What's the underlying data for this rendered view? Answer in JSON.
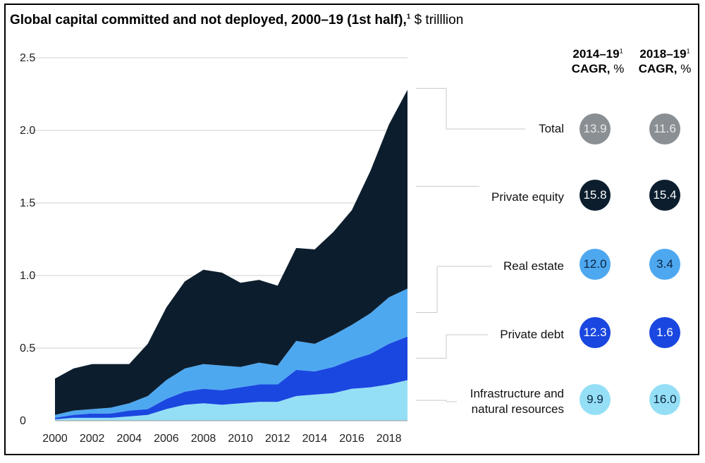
{
  "title": {
    "main": "Global capital committed and not deployed, 2000–19 (1st half),",
    "footnote": "1",
    "unit": " $ trilllion"
  },
  "colors": {
    "infrastructure": "#95dff6",
    "private_debt": "#1a47e0",
    "real_estate": "#4ea8f0",
    "private_equity": "#0c1e2e",
    "total": "#8a8f94",
    "text": "#111111"
  },
  "columns": [
    {
      "period": "2014–19",
      "footnote": "1",
      "metric": "CAGR,",
      "unit": " %"
    },
    {
      "period": "2018–19",
      "footnote": "1",
      "metric": "CAGR,",
      "unit": " %"
    }
  ],
  "rows": [
    {
      "label": "Total",
      "lines": [
        "Total"
      ],
      "key": "total",
      "cagr_2014_19": "13.9",
      "cagr_2018_19": "11.6",
      "text_color": "#e8e8e8"
    },
    {
      "label": "Private equity",
      "lines": [
        "Private equity"
      ],
      "key": "private_equity",
      "cagr_2014_19": "15.8",
      "cagr_2018_19": "15.4",
      "text_color": "#ffffff"
    },
    {
      "label": "Real estate",
      "lines": [
        "Real estate"
      ],
      "key": "real_estate",
      "cagr_2014_19": "12.0",
      "cagr_2018_19": "3.4",
      "text_color": "#0b2540"
    },
    {
      "label": "Private debt",
      "lines": [
        "Private debt"
      ],
      "key": "private_debt",
      "cagr_2014_19": "12.3",
      "cagr_2018_19": "1.6",
      "text_color": "#ffffff"
    },
    {
      "label": "Infrastructure and natural resources",
      "lines": [
        "Infrastructure and",
        "natural resources"
      ],
      "key": "infrastructure",
      "cagr_2014_19": "9.9",
      "cagr_2018_19": "16.0",
      "text_color": "#0b2540"
    }
  ],
  "chart_data": {
    "type": "area",
    "stacked": true,
    "title": "Global capital committed and not deployed, 2000–19 (1st half), $ trilllion",
    "xlabel": "",
    "ylabel": "$ trilllion",
    "x": [
      2000,
      2001,
      2002,
      2003,
      2004,
      2005,
      2006,
      2007,
      2008,
      2009,
      2010,
      2011,
      2012,
      2013,
      2014,
      2015,
      2016,
      2017,
      2018,
      2019
    ],
    "x_ticks": [
      "2000",
      "2002",
      "2004",
      "2006",
      "2008",
      "2010",
      "2012",
      "2014",
      "2016",
      "2018"
    ],
    "x_tick_values": [
      2000,
      2002,
      2004,
      2006,
      2008,
      2010,
      2012,
      2014,
      2016,
      2018
    ],
    "ylim": [
      0,
      2.5
    ],
    "y_ticks": [
      "0",
      "0.5",
      "1.0",
      "1.5",
      "2.0",
      "2.5"
    ],
    "y_tick_values": [
      0,
      0.5,
      1.0,
      1.5,
      2.0,
      2.5
    ],
    "grid": true,
    "series": [
      {
        "name": "Infrastructure and natural resources",
        "key": "infrastructure",
        "values": [
          0.01,
          0.02,
          0.02,
          0.02,
          0.03,
          0.04,
          0.08,
          0.11,
          0.12,
          0.11,
          0.12,
          0.13,
          0.13,
          0.17,
          0.18,
          0.19,
          0.22,
          0.23,
          0.25,
          0.28
        ]
      },
      {
        "name": "Private debt",
        "key": "private_debt",
        "values": [
          0.01,
          0.02,
          0.03,
          0.03,
          0.04,
          0.04,
          0.07,
          0.09,
          0.1,
          0.1,
          0.11,
          0.12,
          0.12,
          0.18,
          0.16,
          0.18,
          0.2,
          0.23,
          0.28,
          0.3
        ]
      },
      {
        "name": "Real estate",
        "key": "real_estate",
        "values": [
          0.02,
          0.03,
          0.03,
          0.04,
          0.05,
          0.09,
          0.13,
          0.16,
          0.17,
          0.17,
          0.14,
          0.15,
          0.13,
          0.2,
          0.19,
          0.22,
          0.24,
          0.28,
          0.32,
          0.33
        ]
      },
      {
        "name": "Private equity",
        "key": "private_equity",
        "values": [
          0.25,
          0.29,
          0.31,
          0.3,
          0.27,
          0.36,
          0.5,
          0.6,
          0.65,
          0.64,
          0.58,
          0.57,
          0.55,
          0.64,
          0.65,
          0.71,
          0.79,
          0.98,
          1.19,
          1.37
        ]
      }
    ]
  }
}
